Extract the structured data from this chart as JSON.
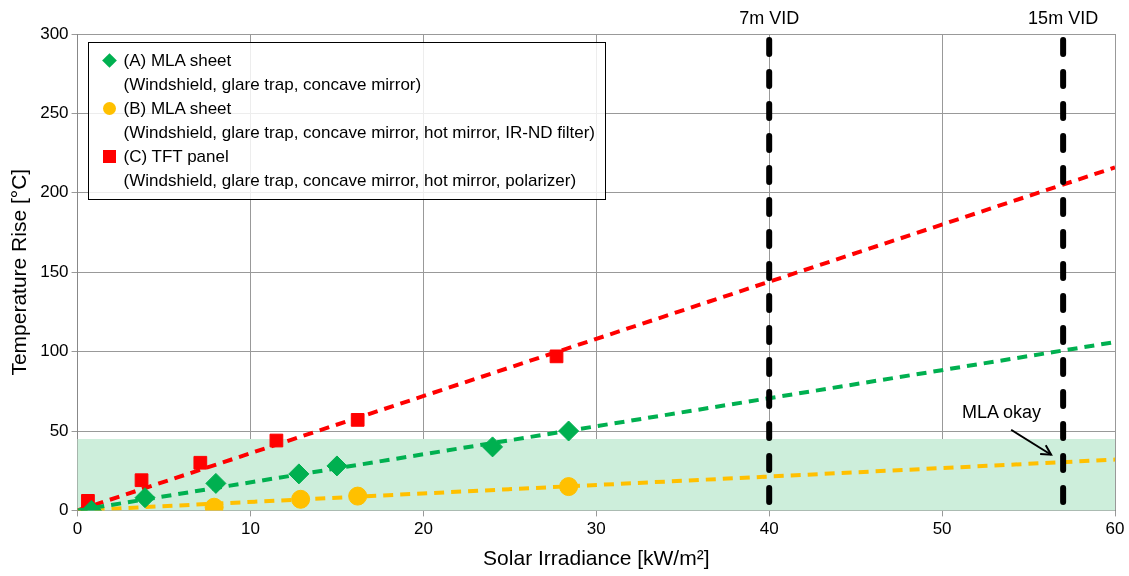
{
  "chart_data": {
    "type": "scatter",
    "xlabel": "Solar Irradiance [kW/m²]",
    "ylabel": "Temperature Rise [°C]",
    "xlim": [
      0,
      60
    ],
    "xticks": [
      0,
      10,
      20,
      30,
      40,
      50,
      60
    ],
    "ylim": [
      0,
      300
    ],
    "yticks": [
      0,
      50,
      100,
      150,
      200,
      250,
      300
    ],
    "grid": true,
    "legend": "top left",
    "series": [
      {
        "type": "line",
        "color": "#00b050",
        "x": [
          0,
          60
        ],
        "values": [
          0,
          106
        ],
        "marker": "none",
        "line_style": "dashed"
      },
      {
        "type": "line",
        "color": "#ffc000",
        "x": [
          0,
          60
        ],
        "values": [
          0,
          32
        ],
        "marker": "none",
        "line_style": "dashed"
      },
      {
        "type": "line",
        "color": "#ff0000",
        "x": [
          0,
          60
        ],
        "values": [
          0,
          216
        ],
        "marker": "none",
        "line_style": "dashed"
      },
      {
        "type": "scatter",
        "name": "(A) MLA sheet\n(Windshield, glare trap, concave mirror)",
        "color": "#00b050",
        "marker": "diamond",
        "x": [
          0.8,
          3.9,
          8.0,
          12.8,
          15.0,
          24.0,
          28.4
        ],
        "values": [
          0,
          8,
          17,
          23,
          28,
          40,
          50
        ]
      },
      {
        "type": "scatter",
        "name": "(B) MLA sheet\n(Windshield, glare trap, concave mirror, hot mirror, IR-ND filter)",
        "color": "#ffc000",
        "marker": "circle",
        "x": [
          7.9,
          12.9,
          16.2,
          28.4
        ],
        "values": [
          2,
          7,
          9,
          15
        ]
      },
      {
        "type": "scatter",
        "name": "(C) TFT panel\n(Windshield, glare trap, concave mirror, hot mirror, polarizer)",
        "color": "#ff0000",
        "marker": "square",
        "x": [
          0.6,
          3.7,
          7.1,
          11.5,
          16.2,
          27.7
        ],
        "values": [
          6,
          19,
          30,
          44,
          57,
          97
        ]
      }
    ],
    "bands": [
      {
        "axis": "y",
        "from": 0,
        "to": 45,
        "color": "#cdeedb"
      }
    ],
    "ref_lines": [
      {
        "axis": "x",
        "value": 40,
        "label": "7m VID",
        "color": "#000000",
        "line_style": "dashed"
      },
      {
        "axis": "x",
        "value": 57,
        "label": "15m VID",
        "color": "#000000",
        "line_style": "dashed"
      }
    ],
    "annotations": [
      {
        "text": "MLA okay",
        "x": 57,
        "y": 30
      }
    ]
  }
}
